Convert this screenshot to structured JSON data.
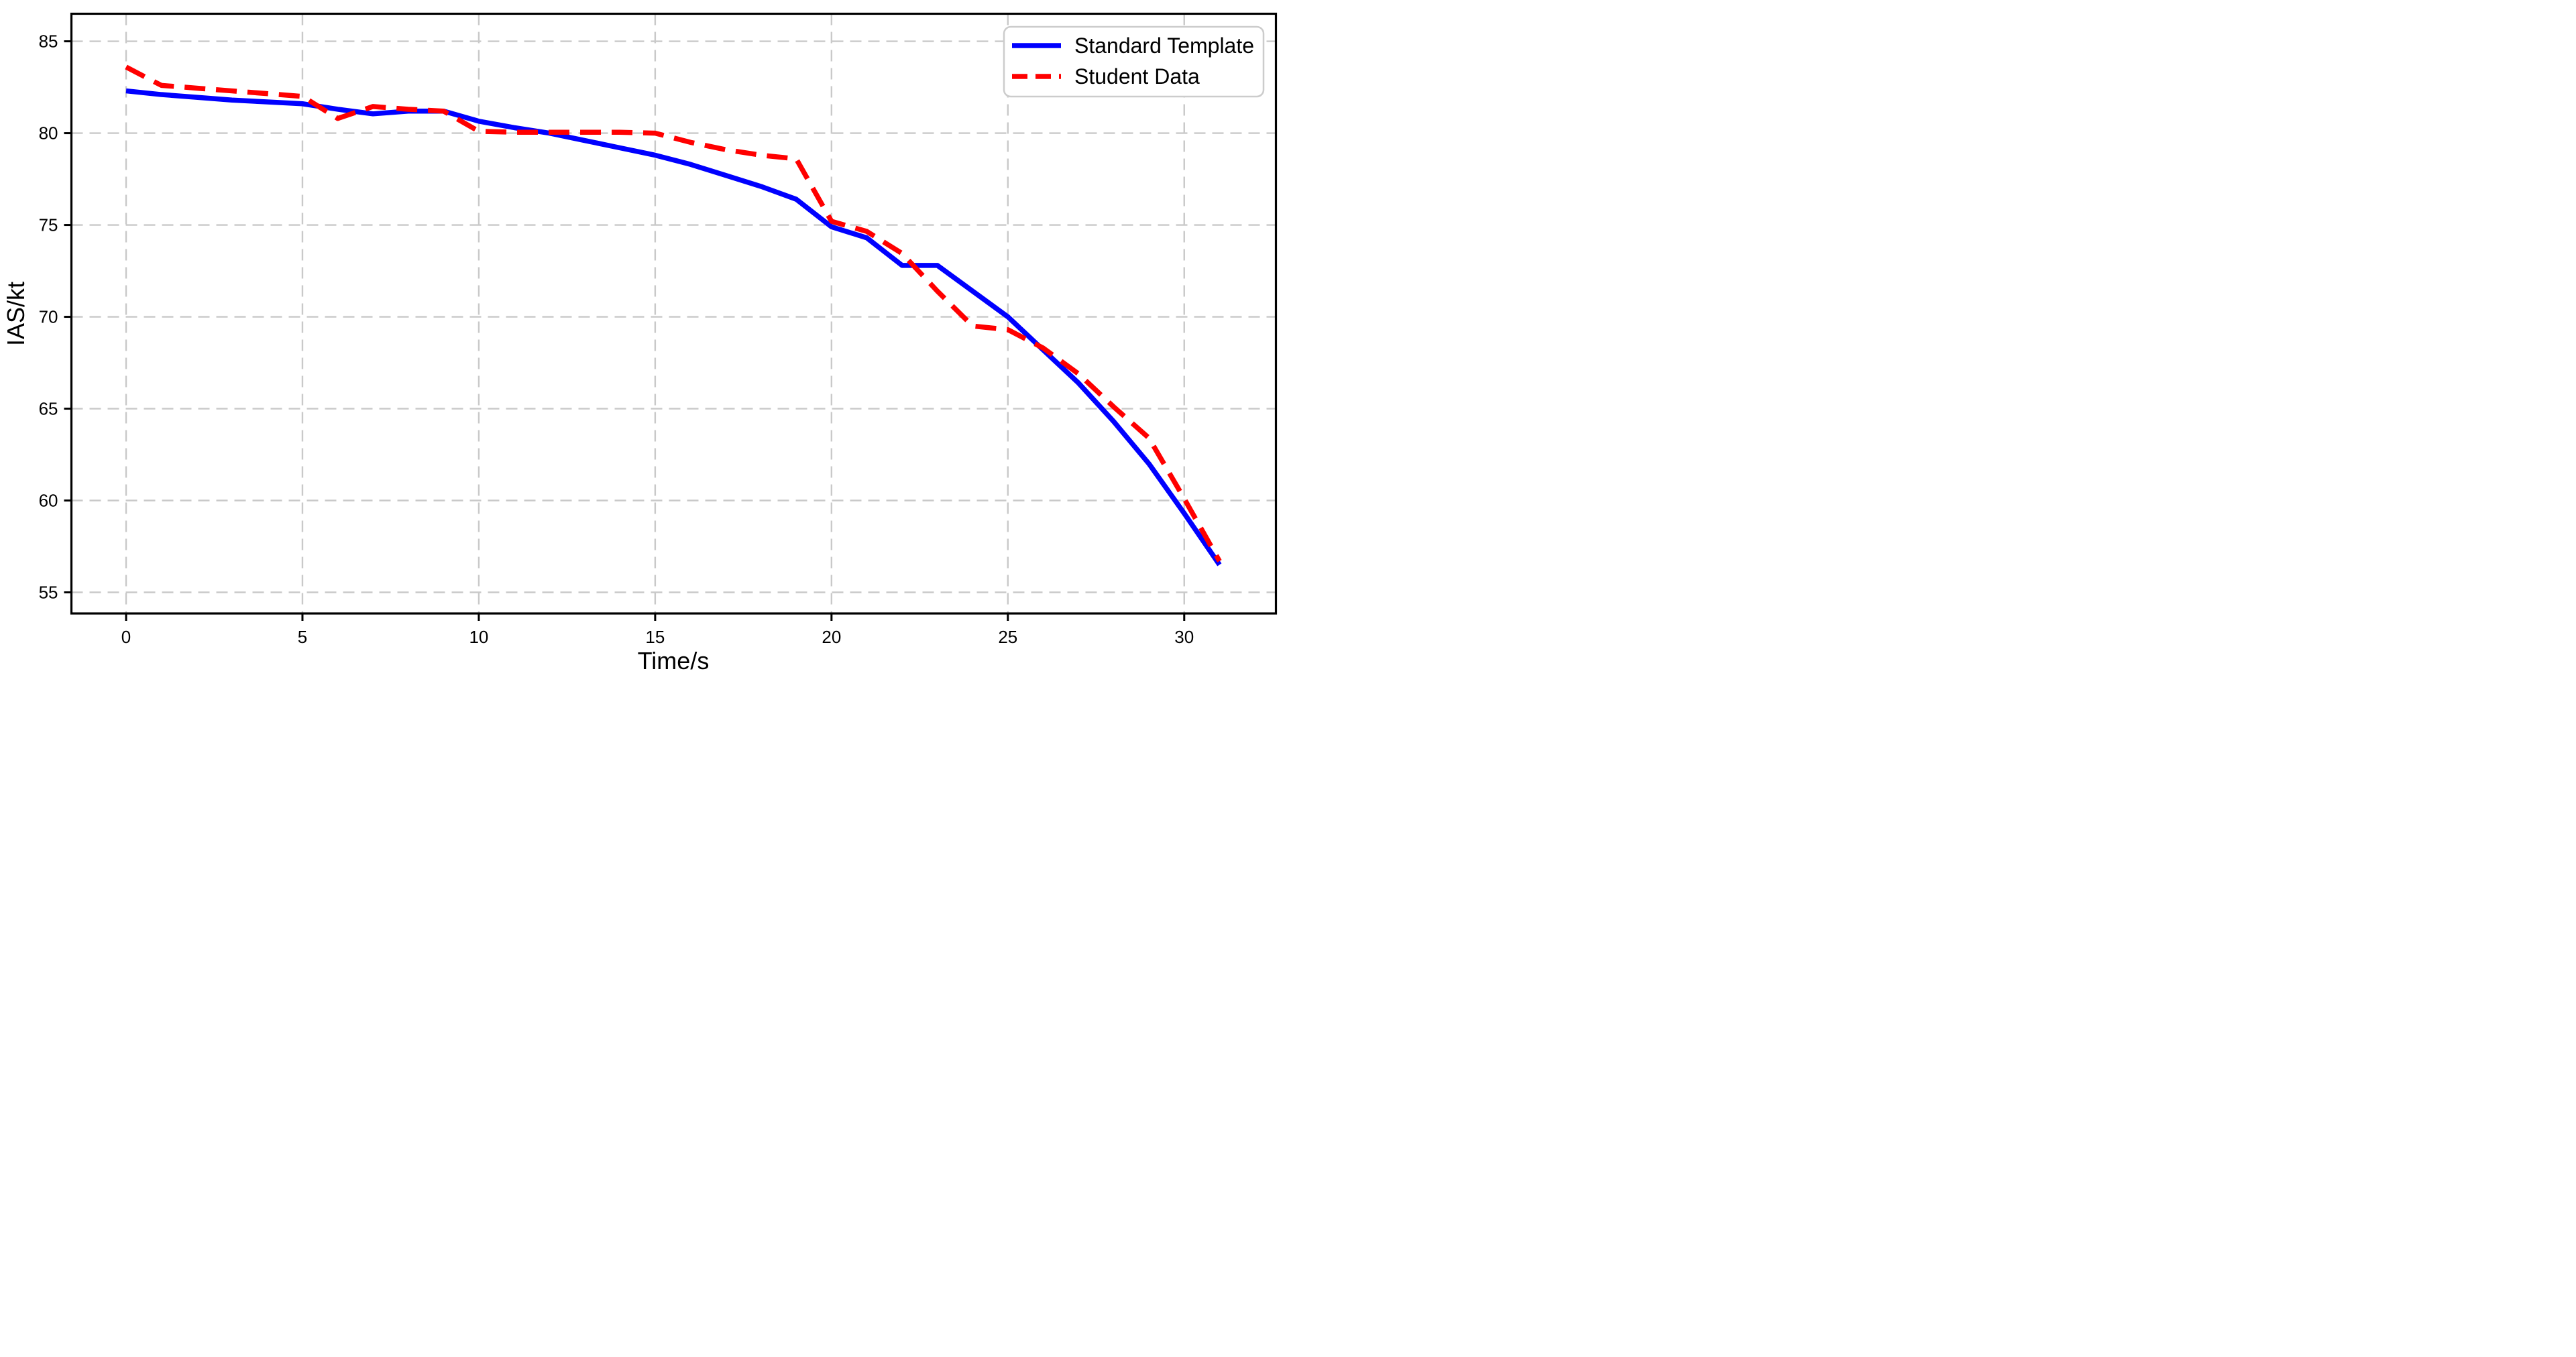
{
  "chart_data": {
    "type": "line",
    "title": "",
    "xlabel": "Time/s",
    "ylabel": "IAS/kt",
    "x": [
      0,
      1,
      2,
      3,
      4,
      5,
      6,
      7,
      8,
      9,
      10,
      11,
      12,
      13,
      14,
      15,
      16,
      17,
      18,
      19,
      20,
      21,
      22,
      23,
      24,
      25,
      26,
      27,
      28,
      29,
      30,
      31
    ],
    "series": [
      {
        "name": "Standard Template",
        "color": "#0000ff",
        "line_style": "solid",
        "values": [
          82.3,
          82.1,
          81.95,
          81.8,
          81.7,
          81.6,
          81.3,
          81.05,
          81.2,
          81.2,
          80.65,
          80.3,
          80.0,
          79.6,
          79.2,
          78.8,
          78.3,
          77.7,
          77.1,
          76.4,
          74.9,
          74.3,
          72.8,
          72.8,
          71.4,
          70.0,
          68.2,
          66.4,
          64.3,
          62.0,
          59.3,
          56.5
        ]
      },
      {
        "name": "Student Data",
        "color": "#ff0000",
        "line_style": "dashed",
        "values": [
          83.6,
          82.6,
          82.45,
          82.3,
          82.15,
          82.0,
          80.8,
          81.45,
          81.3,
          81.2,
          80.1,
          80.05,
          80.05,
          80.05,
          80.05,
          80.0,
          79.5,
          79.1,
          78.8,
          78.6,
          75.2,
          74.65,
          73.45,
          71.4,
          69.5,
          69.3,
          68.3,
          66.9,
          65.1,
          63.4,
          60.1,
          56.7
        ]
      }
    ],
    "xlim": [
      -1.55,
      32.6
    ],
    "ylim": [
      53.85,
      86.5
    ],
    "xticks": [
      0,
      5,
      10,
      15,
      20,
      25,
      30
    ],
    "yticks": [
      55,
      60,
      65,
      70,
      75,
      80,
      85
    ],
    "grid": true,
    "grid_style": "dashed",
    "grid_color": "#c9c9c9",
    "axis_color": "#000000",
    "background_color": "#ffffff",
    "legend": {
      "position": "upper right",
      "entries": [
        "Standard Template",
        "Student Data"
      ]
    }
  }
}
